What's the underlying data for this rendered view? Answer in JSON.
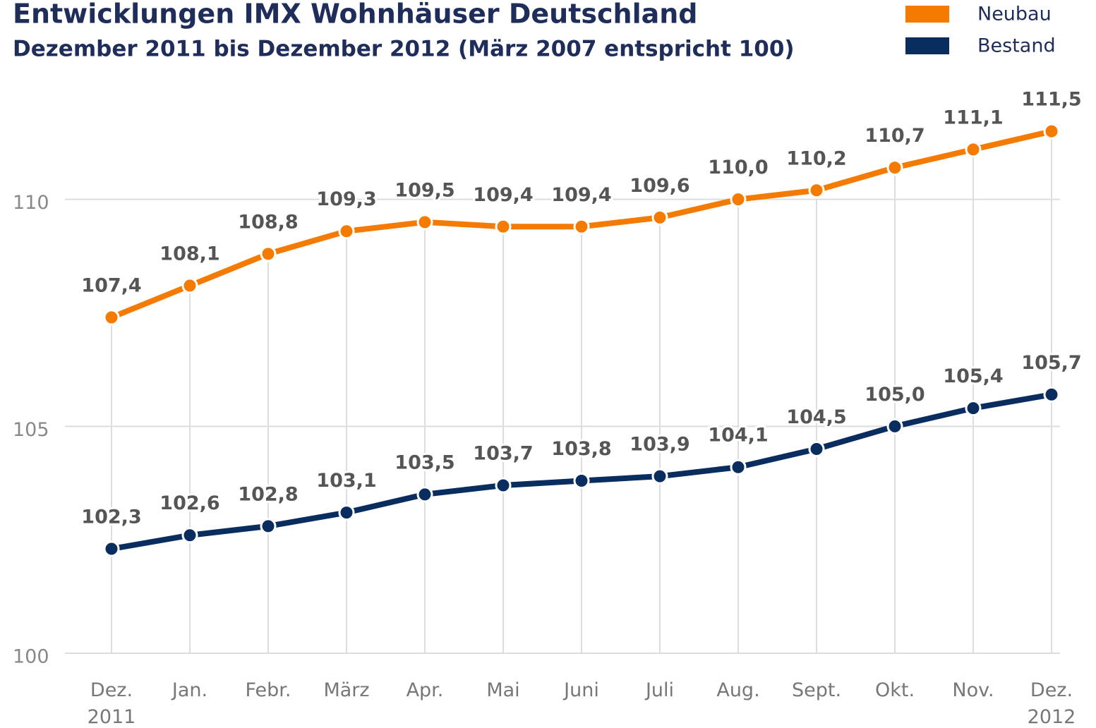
{
  "chart_data": {
    "type": "line",
    "title": "Entwicklungen IMX Wohnhäuser Deutschland",
    "subtitle": "Dezember 2011 bis Dezember 2012 (März 2007 entspricht 100)",
    "categories": [
      "Dez. 2011",
      "Jan.",
      "Febr.",
      "März",
      "Apr.",
      "Mai",
      "Juni",
      "Juli",
      "Aug.",
      "Sept.",
      "Okt.",
      "Nov.",
      "Dez. 2012"
    ],
    "series": [
      {
        "name": "Neubau",
        "color": "#f47b00",
        "values": [
          107.4,
          108.1,
          108.8,
          109.3,
          109.5,
          109.4,
          109.4,
          109.6,
          110.0,
          110.2,
          110.7,
          111.1,
          111.5
        ],
        "value_labels": [
          "107,4",
          "108,1",
          "108,8",
          "109,3",
          "109,5",
          "109,4",
          "109,4",
          "109,6",
          "110,0",
          "110,2",
          "110,7",
          "111,1",
          "111,5"
        ]
      },
      {
        "name": "Bestand",
        "color": "#0a2d5f",
        "values": [
          102.3,
          102.6,
          102.8,
          103.1,
          103.5,
          103.7,
          103.8,
          103.9,
          104.1,
          104.5,
          105.0,
          105.4,
          105.7
        ],
        "value_labels": [
          "102,3",
          "102,6",
          "102,8",
          "103,1",
          "103,5",
          "103,7",
          "103,8",
          "103,9",
          "104,1",
          "104,5",
          "105,0",
          "105,4",
          "105,7"
        ]
      }
    ],
    "ylim": [
      100,
      112
    ],
    "yticks": [
      100,
      105,
      110
    ],
    "grid": true,
    "legend": "top-right"
  }
}
